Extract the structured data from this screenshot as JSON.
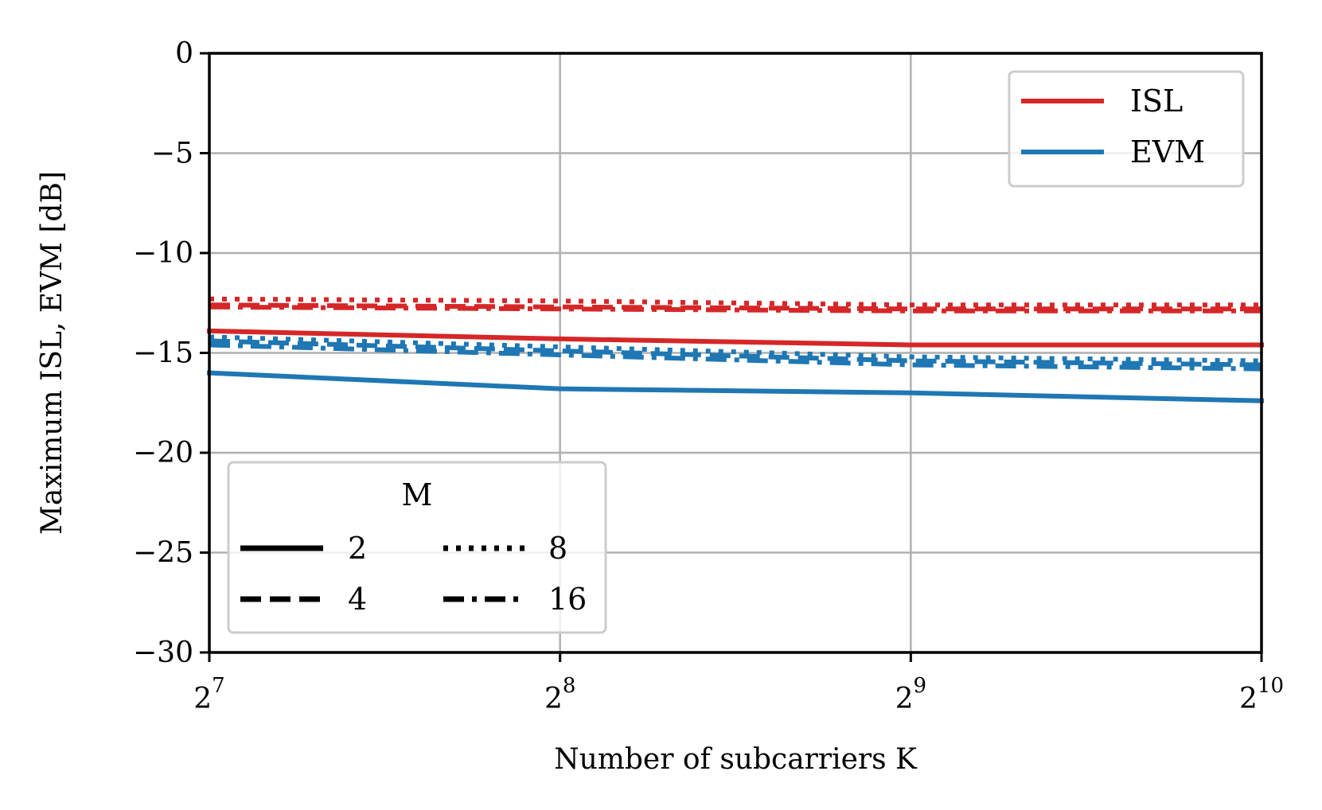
{
  "chart_data": {
    "type": "line",
    "title": "",
    "xlabel": "Number of subcarriers K",
    "ylabel": "Maximum ISL, EVM [dB]",
    "xscale": "log2",
    "x": [
      128,
      256,
      512,
      1024
    ],
    "x_tick_labels": [
      {
        "base": "2",
        "exp": "7"
      },
      {
        "base": "2",
        "exp": "8"
      },
      {
        "base": "2",
        "exp": "9"
      },
      {
        "base": "2",
        "exp": "10"
      }
    ],
    "xlim": [
      128,
      1024
    ],
    "ylim": [
      -30,
      0
    ],
    "y_ticks": [
      0,
      -5,
      -10,
      -15,
      -20,
      -25,
      -30
    ],
    "y_tick_labels": [
      "0",
      "−5",
      "−10",
      "−15",
      "−20",
      "−25",
      "−30"
    ],
    "grid": true,
    "colors": {
      "ISL": "#d62728",
      "EVM": "#1f77b4"
    },
    "metric_legend": {
      "placement": "top-right",
      "entries": [
        {
          "label": "ISL",
          "color": "#d62728"
        },
        {
          "label": "EVM",
          "color": "#1f77b4"
        }
      ]
    },
    "m_legend": {
      "placement": "lower-left",
      "title": "M",
      "entries": [
        {
          "label": "2",
          "style": "solid"
        },
        {
          "label": "8",
          "style": "dotted"
        },
        {
          "label": "4",
          "style": "dashed"
        },
        {
          "label": "16",
          "style": "dashdot"
        }
      ]
    },
    "series": [
      {
        "metric": "ISL",
        "M": "2",
        "style": "solid",
        "values": [
          -13.9,
          -14.3,
          -14.6,
          -14.6
        ]
      },
      {
        "metric": "ISL",
        "M": "4",
        "style": "dashed",
        "values": [
          -12.6,
          -12.7,
          -12.8,
          -12.8
        ]
      },
      {
        "metric": "ISL",
        "M": "8",
        "style": "dotted",
        "values": [
          -12.3,
          -12.4,
          -12.6,
          -12.6
        ]
      },
      {
        "metric": "ISL",
        "M": "16",
        "style": "dashdot",
        "values": [
          -12.7,
          -12.8,
          -12.9,
          -12.9
        ]
      },
      {
        "metric": "EVM",
        "M": "2",
        "style": "solid",
        "values": [
          -16.0,
          -16.8,
          -17.0,
          -17.4
        ]
      },
      {
        "metric": "EVM",
        "M": "4",
        "style": "dashed",
        "values": [
          -14.4,
          -14.9,
          -15.4,
          -15.6
        ]
      },
      {
        "metric": "EVM",
        "M": "8",
        "style": "dotted",
        "values": [
          -14.2,
          -14.7,
          -15.2,
          -15.4
        ]
      },
      {
        "metric": "EVM",
        "M": "16",
        "style": "dashdot",
        "values": [
          -14.6,
          -15.1,
          -15.6,
          -15.8
        ]
      }
    ]
  }
}
